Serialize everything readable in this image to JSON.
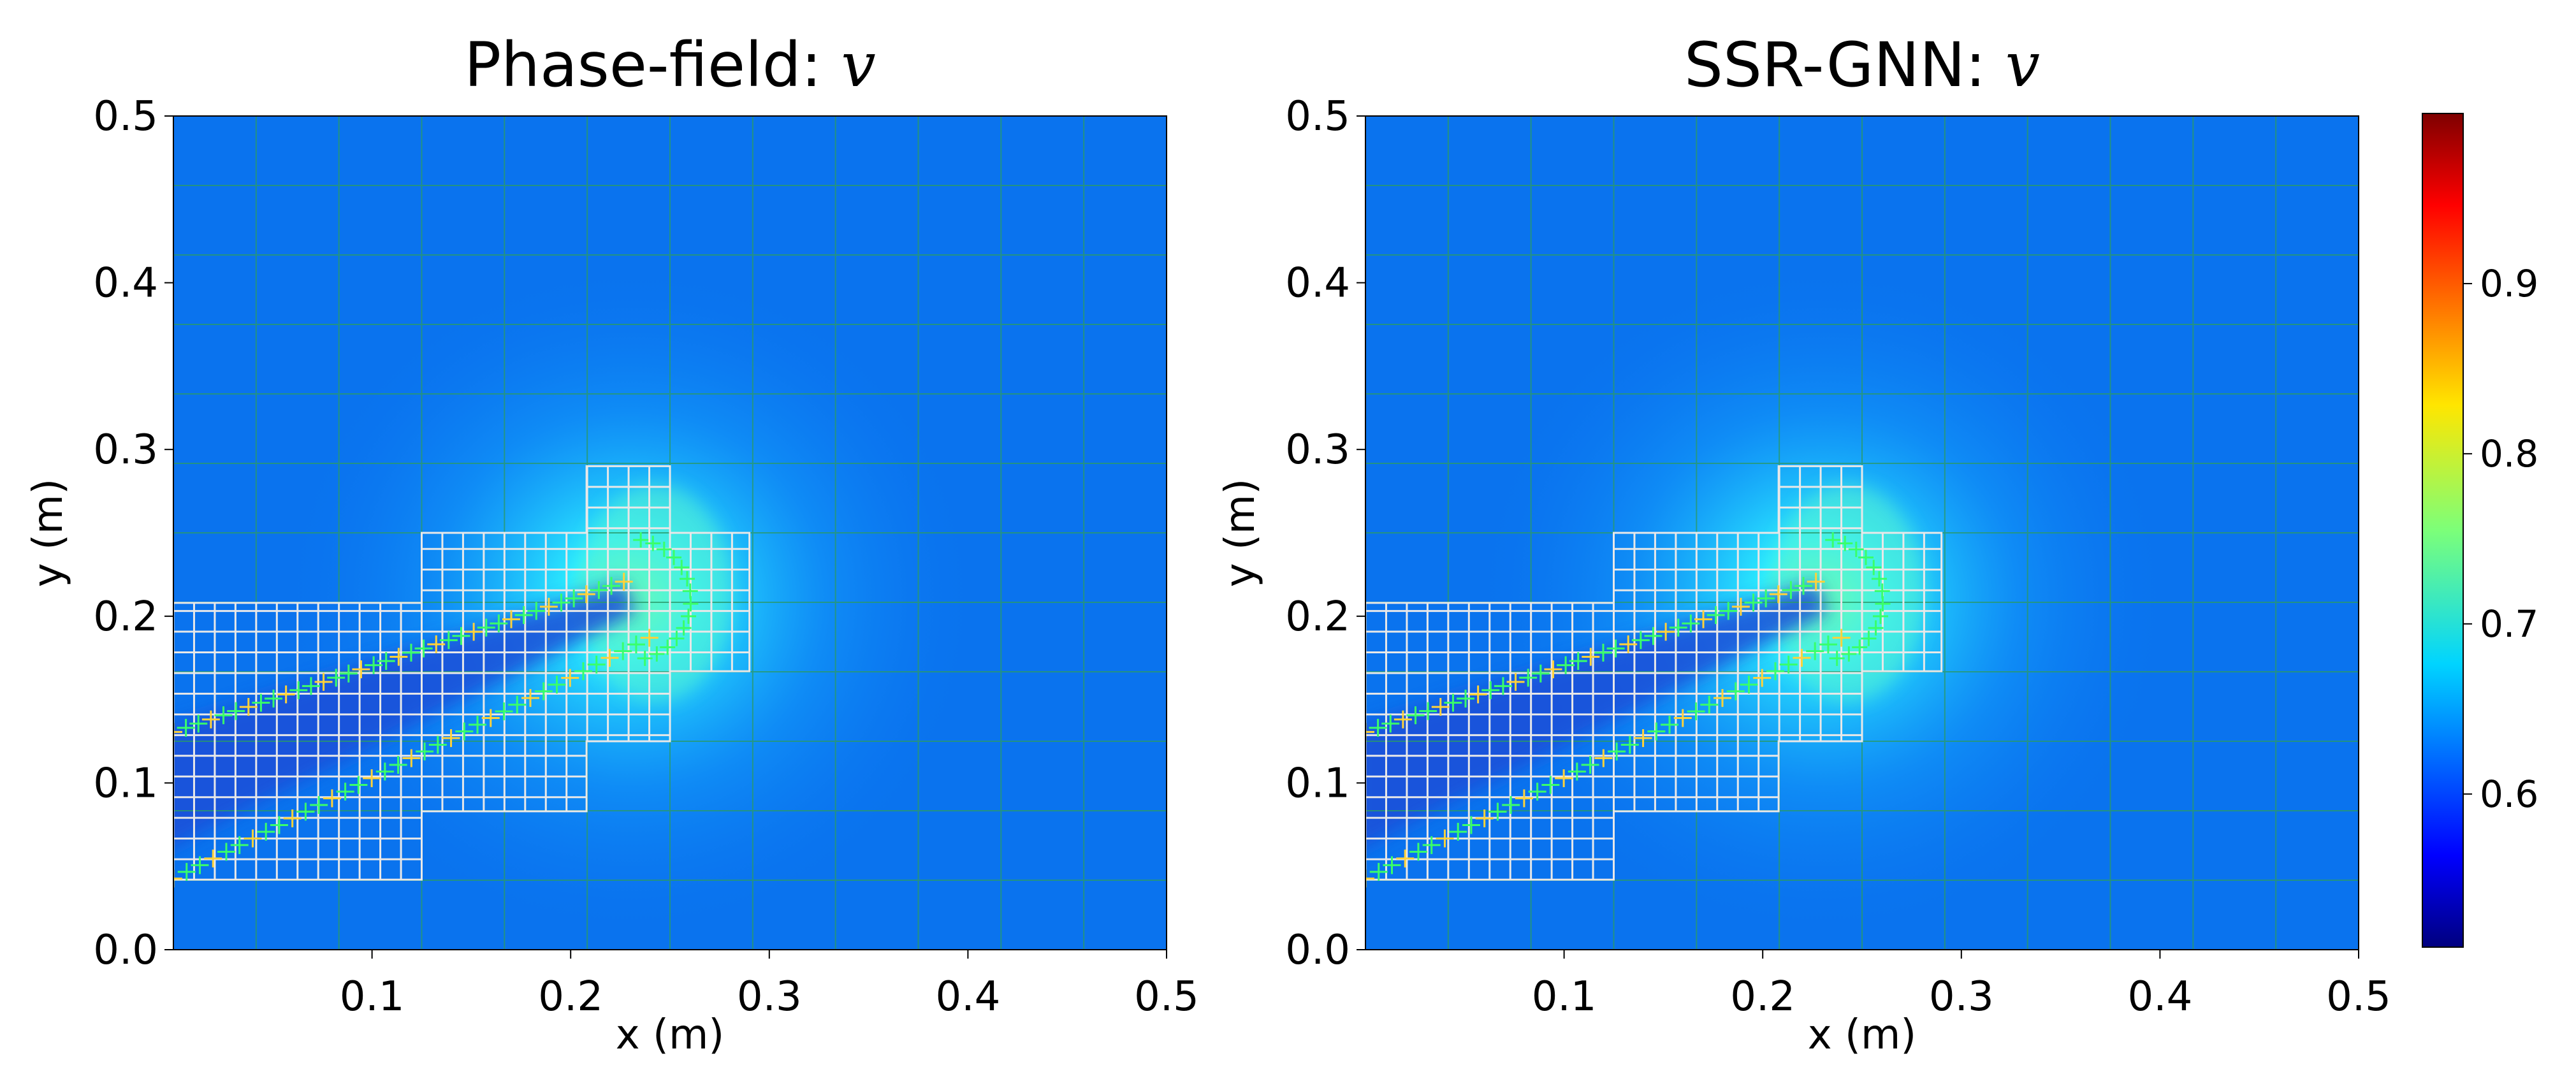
{
  "chart_data": [
    {
      "type": "heatmap",
      "title": "Phase-field: ",
      "title_symbol": "v",
      "xlabel": "x (m)",
      "ylabel": "y (m)",
      "xlim": [
        0,
        0.5
      ],
      "ylim": [
        0,
        0.5
      ],
      "xticks": [
        "0.1",
        "0.2",
        "0.3",
        "0.4",
        "0.5"
      ],
      "yticks": [
        "0.0",
        "0.1",
        "0.2",
        "0.3",
        "0.4",
        "0.5"
      ],
      "field": {
        "background_value": 0.62,
        "crack": {
          "start": [
            0.0,
            0.1
          ],
          "tip": [
            0.23,
            0.21
          ],
          "value": 0.61
        },
        "tip_peak_value": 0.78
      }
    },
    {
      "type": "heatmap",
      "title": "SSR-GNN: ",
      "title_symbol": "v",
      "xlabel": "x (m)",
      "ylabel": "y (m)",
      "xlim": [
        0,
        0.5
      ],
      "ylim": [
        0,
        0.5
      ],
      "xticks": [
        "0.1",
        "0.2",
        "0.3",
        "0.4",
        "0.5"
      ],
      "yticks": [
        "0.0",
        "0.1",
        "0.2",
        "0.3",
        "0.4",
        "0.5"
      ],
      "field": {
        "background_value": 0.62,
        "crack": {
          "start": [
            0.0,
            0.1
          ],
          "tip": [
            0.23,
            0.21
          ],
          "value": 0.61
        },
        "tip_peak_value": 0.78
      }
    }
  ],
  "colorbar": {
    "colormap": "jet",
    "vmin": 0.51,
    "vmax": 1.0,
    "ticks": [
      0.6,
      0.7,
      0.8,
      0.9
    ],
    "tick_labels": [
      "0.6",
      "0.7",
      "0.8",
      "0.9"
    ]
  }
}
